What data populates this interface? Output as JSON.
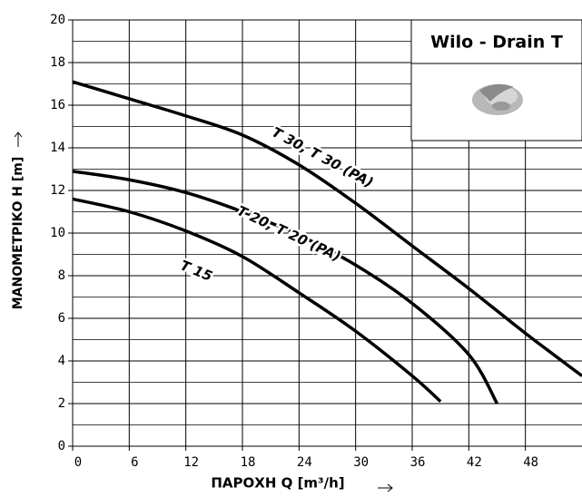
{
  "chart_data": {
    "type": "line",
    "title": "Wilo - Drain T",
    "x_label": "ΠΑΡΟΧΗ Q [m³/h]",
    "y_label": "ΜΑΝΟΜΕΤΡΙΚΟ Η [m]",
    "xlim": [
      0,
      54
    ],
    "xticks": [
      0,
      6,
      12,
      18,
      24,
      30,
      36,
      42,
      48
    ],
    "ylim": [
      0,
      20
    ],
    "yticks": [
      0,
      2,
      4,
      6,
      8,
      10,
      12,
      14,
      16,
      18,
      20
    ],
    "y_minor_grid": [
      1,
      3,
      5,
      7,
      9,
      11,
      13,
      15,
      17,
      19
    ],
    "grid": true,
    "series": [
      {
        "name": "T 30, T 30 (PA)",
        "color": "#000000",
        "x": [
          0,
          6,
          12,
          18,
          24,
          30,
          36,
          42,
          48,
          54
        ],
        "values": [
          17.1,
          16.3,
          15.5,
          14.6,
          13.2,
          11.4,
          9.4,
          7.4,
          5.3,
          3.3
        ]
      },
      {
        "name": "T 20, T 20 (PA)",
        "color": "#000000",
        "x": [
          0,
          6,
          12,
          18,
          24,
          30,
          36,
          42,
          45
        ],
        "values": [
          12.9,
          12.5,
          11.9,
          11.0,
          9.9,
          8.5,
          6.7,
          4.3,
          2.0
        ]
      },
      {
        "name": "T 15",
        "color": "#000000",
        "x": [
          0,
          6,
          12,
          18,
          24,
          30,
          36,
          39
        ],
        "values": [
          11.6,
          11.0,
          10.1,
          8.9,
          7.2,
          5.4,
          3.3,
          2.1
        ]
      }
    ]
  }
}
